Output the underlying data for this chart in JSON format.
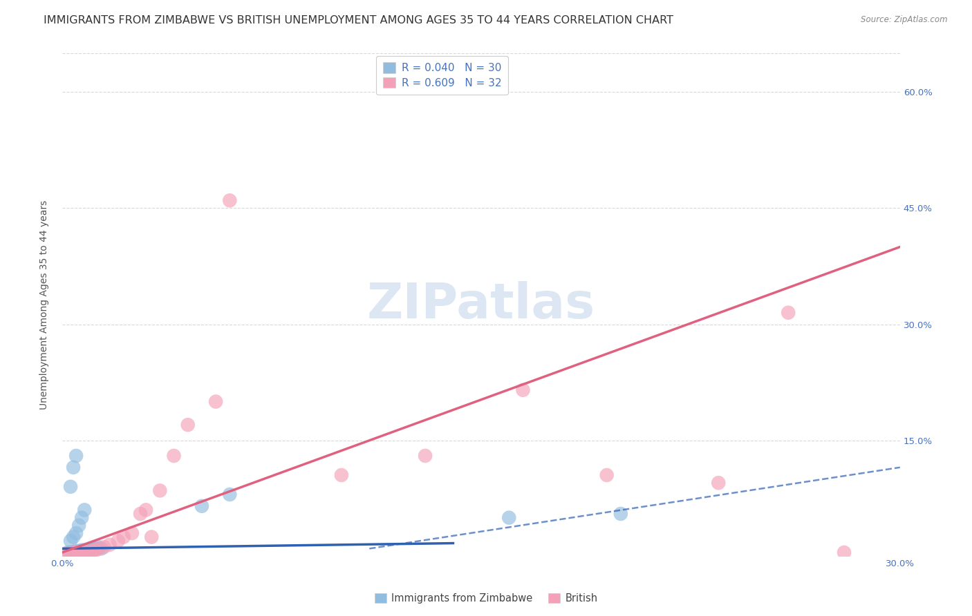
{
  "title": "IMMIGRANTS FROM ZIMBABWE VS BRITISH UNEMPLOYMENT AMONG AGES 35 TO 44 YEARS CORRELATION CHART",
  "source": "Source: ZipAtlas.com",
  "ylabel": "Unemployment Among Ages 35 to 44 years",
  "x_min": 0.0,
  "x_max": 0.3,
  "y_min": 0.0,
  "y_max": 0.65,
  "zimbabwe_color": "#90bce0",
  "british_color": "#f4a0b8",
  "zimbabwe_line_color": "#3060b0",
  "british_line_color": "#e06080",
  "grid_color": "#d8d8d8",
  "background_color": "#ffffff",
  "title_fontsize": 11.5,
  "axis_label_fontsize": 10,
  "tick_fontsize": 9.5,
  "legend_fontsize": 11,
  "watermark_color": "#c5d8ec",
  "zimbabwe_scatter_x": [
    0.002,
    0.003,
    0.004,
    0.004,
    0.005,
    0.005,
    0.006,
    0.006,
    0.007,
    0.007,
    0.008,
    0.008,
    0.009,
    0.01,
    0.01,
    0.011,
    0.012,
    0.013,
    0.014,
    0.003,
    0.004,
    0.005,
    0.006,
    0.007,
    0.008,
    0.003,
    0.004,
    0.005,
    0.05,
    0.06,
    0.16,
    0.2
  ],
  "zimbabwe_scatter_y": [
    0.005,
    0.005,
    0.005,
    0.006,
    0.005,
    0.006,
    0.005,
    0.007,
    0.006,
    0.008,
    0.006,
    0.008,
    0.007,
    0.008,
    0.01,
    0.01,
    0.01,
    0.012,
    0.01,
    0.02,
    0.025,
    0.03,
    0.04,
    0.05,
    0.06,
    0.09,
    0.115,
    0.13,
    0.065,
    0.08,
    0.05,
    0.055
  ],
  "british_scatter_x": [
    0.002,
    0.003,
    0.004,
    0.005,
    0.006,
    0.007,
    0.008,
    0.009,
    0.01,
    0.011,
    0.012,
    0.013,
    0.015,
    0.017,
    0.02,
    0.022,
    0.025,
    0.028,
    0.03,
    0.032,
    0.035,
    0.04,
    0.045,
    0.055,
    0.06,
    0.1,
    0.13,
    0.165,
    0.195,
    0.235,
    0.26,
    0.28
  ],
  "british_scatter_y": [
    0.004,
    0.004,
    0.005,
    0.005,
    0.005,
    0.005,
    0.005,
    0.006,
    0.006,
    0.007,
    0.008,
    0.01,
    0.012,
    0.015,
    0.02,
    0.025,
    0.03,
    0.055,
    0.06,
    0.025,
    0.085,
    0.13,
    0.17,
    0.2,
    0.46,
    0.105,
    0.13,
    0.215,
    0.105,
    0.095,
    0.315,
    0.005
  ],
  "zimbabwe_solid_line_x": [
    0.0,
    0.14
  ],
  "zimbabwe_solid_line_y": [
    0.01,
    0.017
  ],
  "zimbabwe_dashed_line_x": [
    0.11,
    0.3
  ],
  "zimbabwe_dashed_line_y": [
    0.01,
    0.115
  ],
  "british_line_x": [
    0.0,
    0.3
  ],
  "british_line_y": [
    0.005,
    0.4
  ]
}
